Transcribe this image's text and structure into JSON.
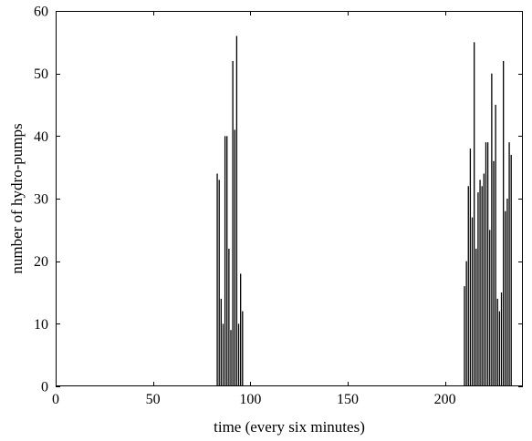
{
  "chart_data": {
    "type": "bar",
    "title": "",
    "xlabel": "time (every six minutes)",
    "ylabel": "number of hydro-pumps",
    "xlim": [
      0,
      240
    ],
    "ylim": [
      0,
      60
    ],
    "xticks": [
      0,
      50,
      100,
      150,
      200
    ],
    "yticks": [
      0,
      10,
      20,
      30,
      40,
      50,
      60
    ],
    "grid": false,
    "legend": "none",
    "bar_color": "#000000",
    "x": [
      83,
      84,
      85,
      86,
      87,
      88,
      89,
      90,
      91,
      92,
      93,
      94,
      95,
      96,
      210,
      211,
      212,
      213,
      214,
      215,
      216,
      217,
      218,
      219,
      220,
      221,
      222,
      223,
      224,
      225,
      226,
      227,
      228,
      229,
      230,
      231,
      232,
      233,
      234
    ],
    "values": [
      34,
      33,
      14,
      10,
      40,
      40,
      22,
      9,
      52,
      41,
      56,
      10,
      18,
      12,
      16,
      20,
      32,
      38,
      27,
      55,
      22,
      31,
      33,
      32,
      34,
      39,
      39,
      25,
      50,
      36,
      45,
      14,
      12,
      15,
      52,
      28,
      30,
      39,
      37
    ]
  }
}
